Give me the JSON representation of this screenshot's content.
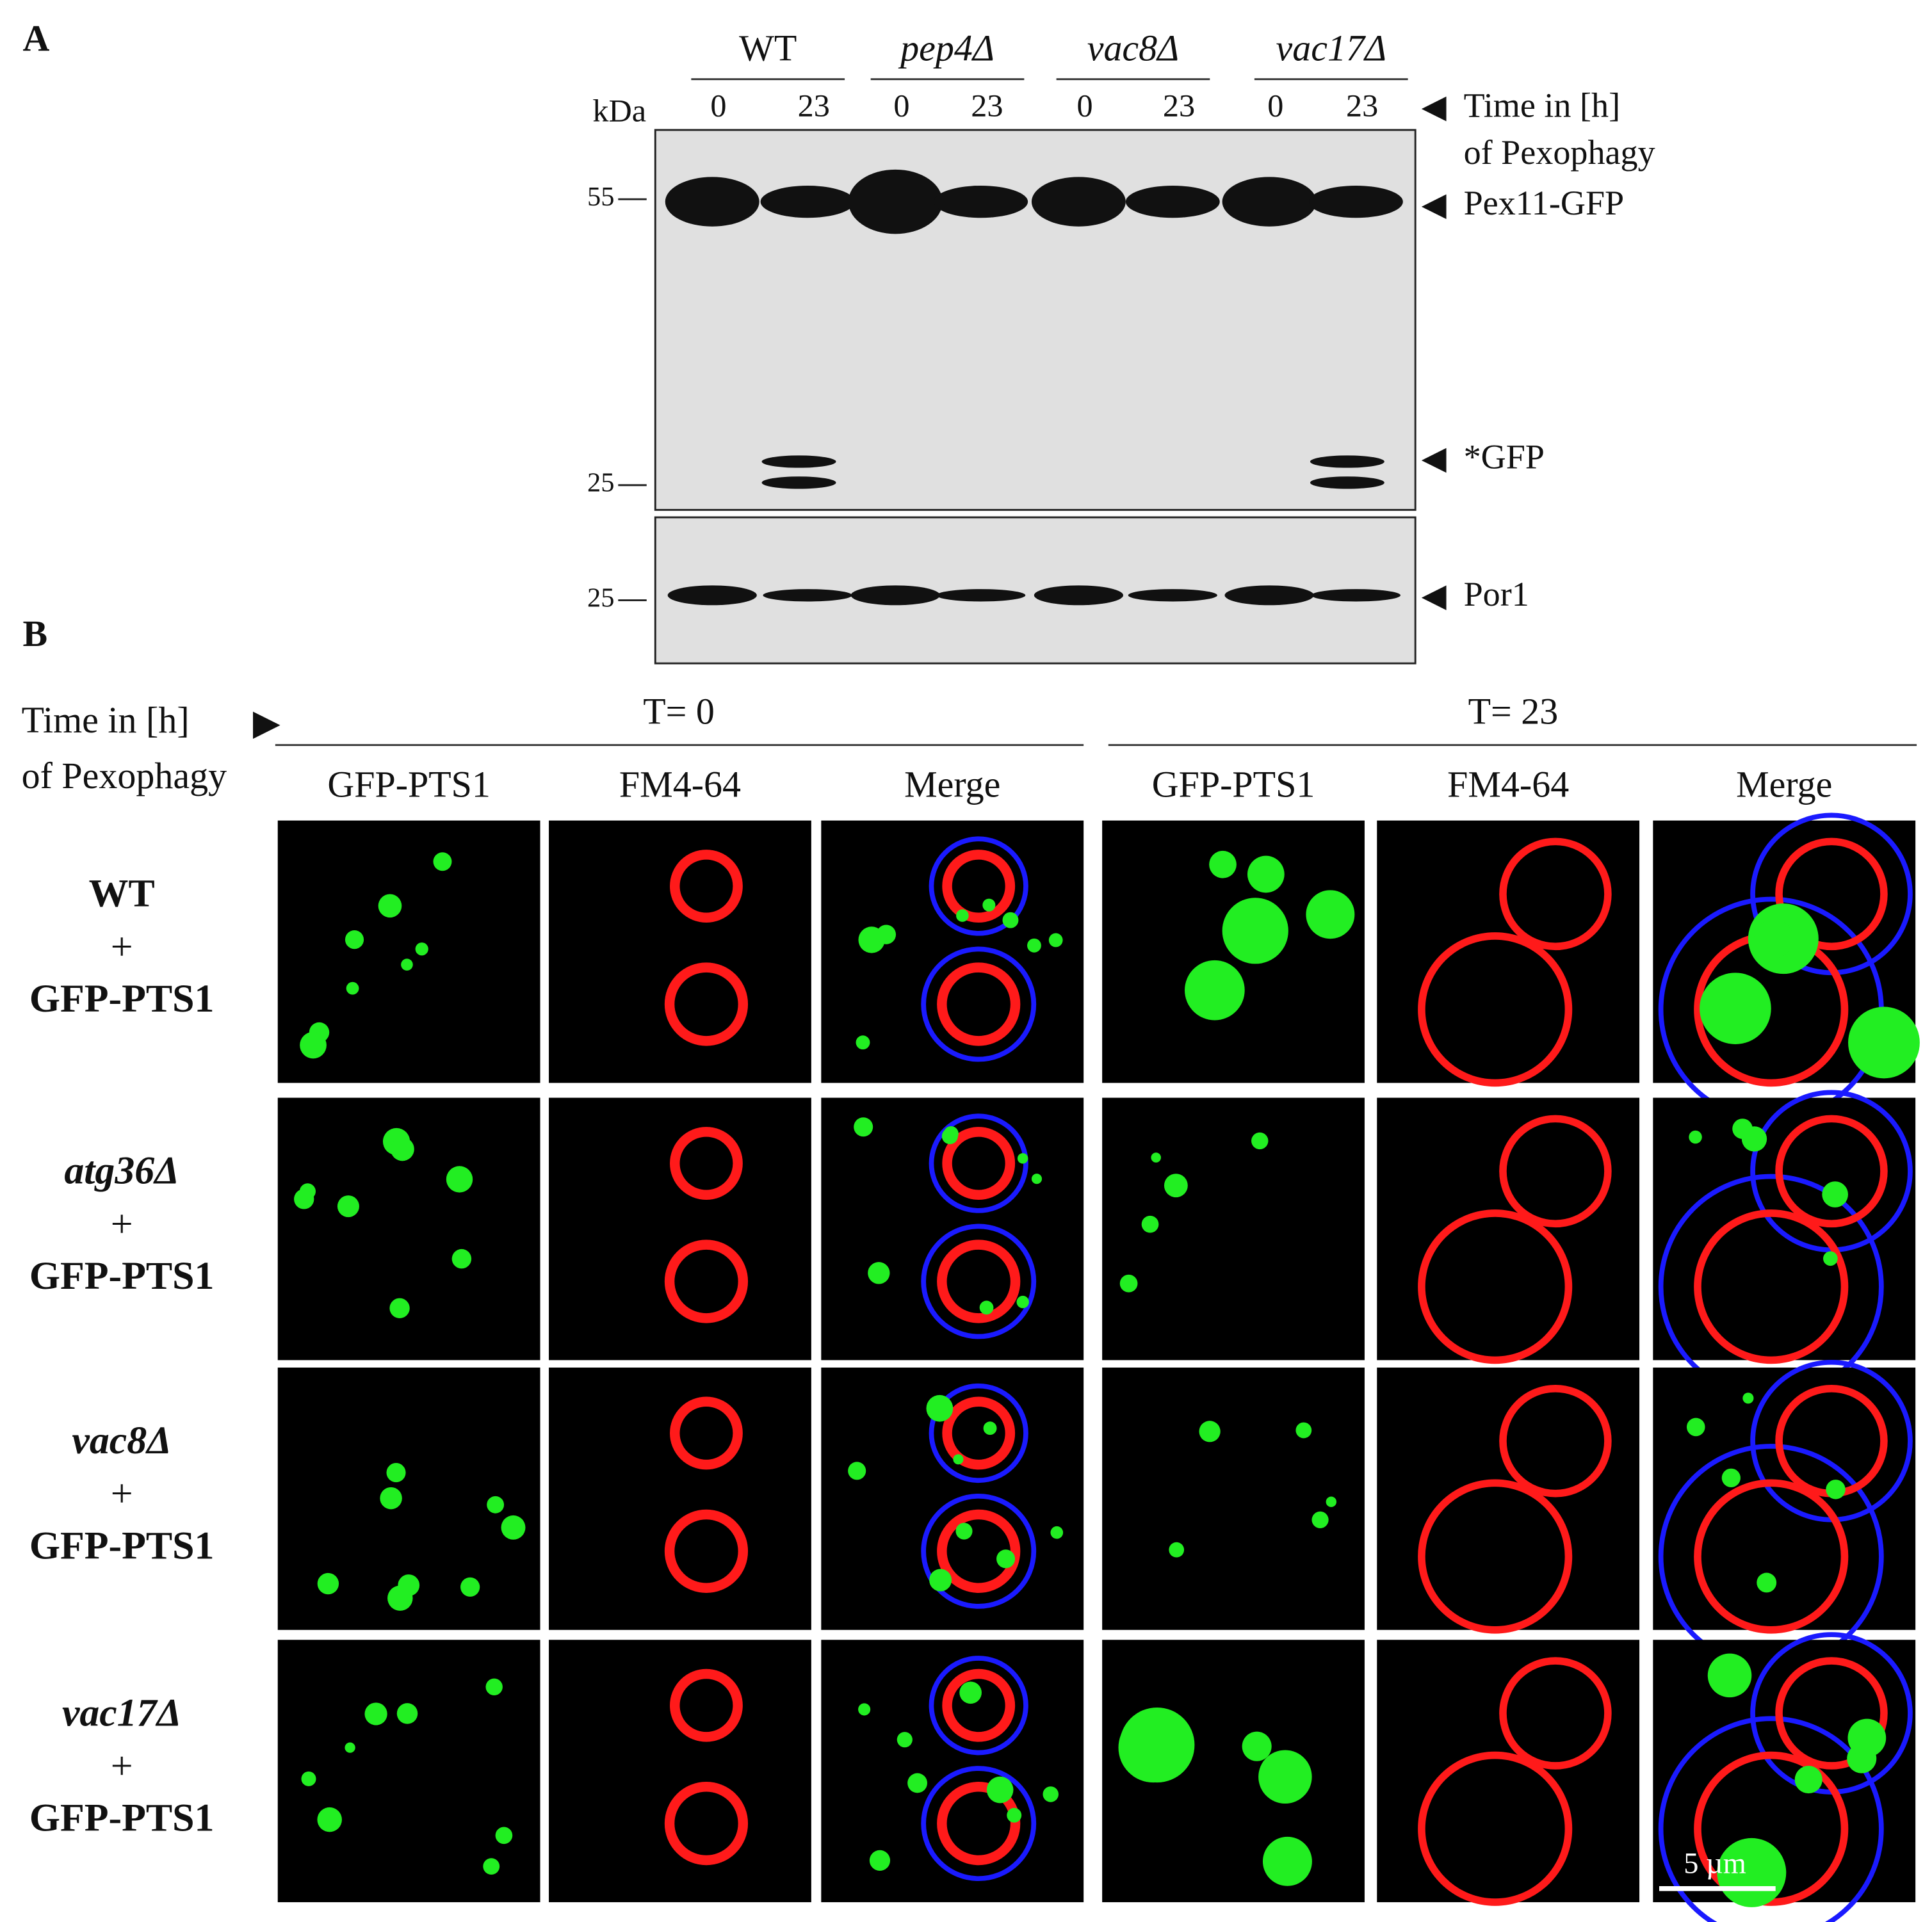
{
  "panel_a": {
    "label": "A",
    "strains": [
      "WT",
      "pep4Δ",
      "vac8Δ",
      "vac17Δ"
    ],
    "kda_label": "kDa",
    "lanes": [
      "0",
      "23",
      "0",
      "23",
      "0",
      "23",
      "0",
      "23"
    ],
    "markers": [
      "55",
      "25"
    ],
    "por1_marker": "25",
    "time_label": [
      "Time in [h]",
      "of Pexophagy"
    ],
    "bands": [
      "Pex11-GFP",
      "*GFP",
      "Por1"
    ]
  },
  "panel_b": {
    "label": "B",
    "time_label": [
      "Time in [h]",
      "of Pexophagy"
    ],
    "timepoints": [
      "T= 0",
      "T= 23"
    ],
    "channels": [
      "GFP-PTS1",
      "FM4-64",
      "Merge",
      "GFP-PTS1",
      "FM4-64",
      "Merge"
    ],
    "rows": [
      {
        "strain": "WT",
        "plus": "+",
        "construct": "GFP-PTS1"
      },
      {
        "strain": "atg36Δ",
        "plus": "+",
        "construct": "GFP-PTS1"
      },
      {
        "strain": "vac8Δ",
        "plus": "+",
        "construct": "GFP-PTS1"
      },
      {
        "strain": "vac17Δ",
        "plus": "+",
        "construct": "GFP-PTS1"
      }
    ],
    "scale_bar": "5 µm"
  }
}
